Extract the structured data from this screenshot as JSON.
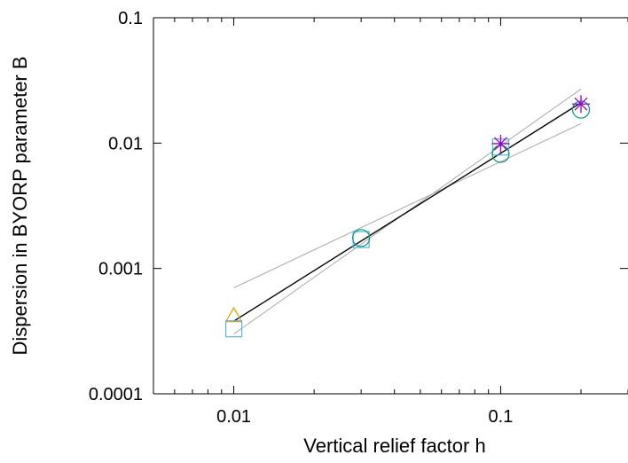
{
  "chart_data": {
    "type": "scatter",
    "title": "",
    "xlabel": "Vertical relief factor h",
    "ylabel": "Dispersion in BYORP parameter B",
    "xscale": "log",
    "yscale": "log",
    "xlim": [
      0.005,
      0.3
    ],
    "ylim": [
      0.0001,
      0.1
    ],
    "grid": false,
    "legend": "none",
    "x_ticks": [
      {
        "value": 0.01,
        "label": "0.01"
      },
      {
        "value": 0.1,
        "label": "0.1"
      }
    ],
    "y_ticks": [
      {
        "value": 0.0001,
        "label": "0.0001"
      },
      {
        "value": 0.001,
        "label": "0.001"
      },
      {
        "value": 0.01,
        "label": "0.01"
      },
      {
        "value": 0.1,
        "label": "0.1"
      }
    ],
    "series": [
      {
        "marker": "triangle",
        "color": "#e69f00",
        "x": [
          0.01
        ],
        "y": [
          0.00042
        ]
      },
      {
        "marker": "square",
        "color": "#56b4e9",
        "x": [
          0.01,
          0.03,
          0.1
        ],
        "y": [
          0.00033,
          0.0017,
          0.0093
        ]
      },
      {
        "marker": "circle",
        "color": "#009e73",
        "x": [
          0.03,
          0.1,
          0.2
        ],
        "y": [
          0.00175,
          0.0082,
          0.0185
        ]
      },
      {
        "marker": "asterisk",
        "color": "#9400d3",
        "x": [
          0.1,
          0.2
        ],
        "y": [
          0.0099,
          0.0205
        ]
      }
    ],
    "lines": [
      {
        "style": "fit",
        "color": "#000000",
        "x": [
          0.01,
          0.2
        ],
        "y": [
          0.00038,
          0.021
        ]
      },
      {
        "style": "bound",
        "color": "#b0b0b0",
        "x": [
          0.01,
          0.2
        ],
        "y": [
          0.0003,
          0.027
        ]
      },
      {
        "style": "bound",
        "color": "#b0b0b0",
        "x": [
          0.01,
          0.2
        ],
        "y": [
          0.0007,
          0.0143
        ]
      }
    ]
  }
}
